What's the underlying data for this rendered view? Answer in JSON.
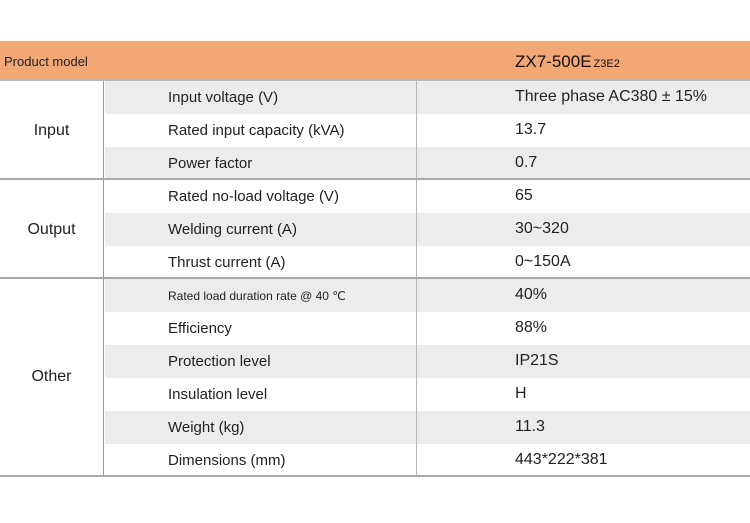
{
  "header": {
    "label": "Product model",
    "model": "ZX7-500E",
    "model_suffix": "Z3E2"
  },
  "groups": [
    {
      "name": "Input",
      "rows": [
        {
          "param": "Input voltage (V)",
          "value": "Three phase AC380 ± 15%"
        },
        {
          "param": "Rated input capacity (kVA)",
          "value": "13.7"
        },
        {
          "param": "Power factor",
          "value": "0.7"
        }
      ]
    },
    {
      "name": "Output",
      "rows": [
        {
          "param": "Rated no-load voltage (V)",
          "value": "65"
        },
        {
          "param": "Welding current (A)",
          "value": "30~320"
        },
        {
          "param": "Thrust current (A)",
          "value": "0~150A"
        }
      ]
    },
    {
      "name": "Other",
      "rows": [
        {
          "param": "Rated load duration rate @ 40 ℃",
          "value": "40%"
        },
        {
          "param": "Efficiency",
          "value": "88%"
        },
        {
          "param": "Protection level",
          "value": "IP21S"
        },
        {
          "param": "Insulation level",
          "value": "H"
        },
        {
          "param": "Weight (kg)",
          "value": "11.3"
        },
        {
          "param": "Dimensions (mm)",
          "value": "443*222*381"
        }
      ]
    }
  ]
}
